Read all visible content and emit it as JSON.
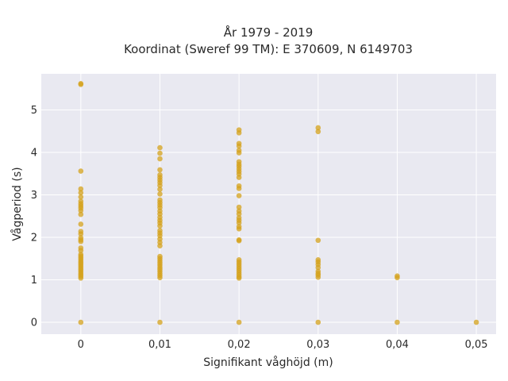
{
  "chart_data": {
    "type": "scatter",
    "title": [
      "År 1979 - 2019",
      "Koordinat (Sweref 99 TM): E 370609, N 6149703"
    ],
    "xlabel": "Signifikant våghöjd (m)",
    "ylabel": "Vågperiod (s)",
    "xlim": [
      -0.005,
      0.0525
    ],
    "ylim": [
      -0.28,
      5.85
    ],
    "xticks": [
      0,
      0.01,
      0.02,
      0.03,
      0.04,
      0.05
    ],
    "xtick_labels": [
      "0",
      "0,01",
      "0,02",
      "0,03",
      "0,04",
      "0,05"
    ],
    "yticks": [
      0,
      1,
      2,
      3,
      4,
      5
    ],
    "ytick_labels": [
      "0",
      "1",
      "2",
      "3",
      "4",
      "5"
    ],
    "grid": true,
    "background": "#e9e9f1",
    "marker_color": "#d4a21b",
    "series": [
      {
        "points": [
          [
            0,
            5.62
          ],
          [
            0,
            5.6
          ],
          [
            0,
            3.56
          ],
          [
            0,
            3.14
          ],
          [
            0,
            3.05
          ],
          [
            0,
            2.95
          ],
          [
            0,
            2.85
          ],
          [
            0,
            2.79
          ],
          [
            0,
            2.74
          ],
          [
            0,
            2.69
          ],
          [
            0,
            2.63
          ],
          [
            0,
            2.54
          ],
          [
            0,
            2.31
          ],
          [
            0,
            2.14
          ],
          [
            0,
            2.08
          ],
          [
            0,
            1.99
          ],
          [
            0,
            1.94
          ],
          [
            0,
            1.9
          ],
          [
            0,
            1.75
          ],
          [
            0,
            1.69
          ],
          [
            0,
            1.6
          ],
          [
            0,
            1.56
          ],
          [
            0,
            1.52
          ],
          [
            0,
            1.48
          ],
          [
            0,
            1.44
          ],
          [
            0,
            1.4
          ],
          [
            0,
            1.36
          ],
          [
            0,
            1.32
          ],
          [
            0,
            1.28
          ],
          [
            0,
            1.24
          ],
          [
            0,
            1.2
          ],
          [
            0,
            1.16
          ],
          [
            0,
            1.12
          ],
          [
            0,
            1.08
          ],
          [
            0,
            1.04
          ],
          [
            0,
            0.0
          ],
          [
            0.01,
            4.11
          ],
          [
            0.01,
            3.98
          ],
          [
            0.01,
            3.85
          ],
          [
            0.01,
            3.59
          ],
          [
            0.01,
            3.47
          ],
          [
            0.01,
            3.41
          ],
          [
            0.01,
            3.35
          ],
          [
            0.01,
            3.29
          ],
          [
            0.01,
            3.22
          ],
          [
            0.01,
            3.13
          ],
          [
            0.01,
            3.02
          ],
          [
            0.01,
            2.88
          ],
          [
            0.01,
            2.82
          ],
          [
            0.01,
            2.76
          ],
          [
            0.01,
            2.7
          ],
          [
            0.01,
            2.62
          ],
          [
            0.01,
            2.55
          ],
          [
            0.01,
            2.47
          ],
          [
            0.01,
            2.4
          ],
          [
            0.01,
            2.34
          ],
          [
            0.01,
            2.27
          ],
          [
            0.01,
            2.16
          ],
          [
            0.01,
            2.1
          ],
          [
            0.01,
            2.04
          ],
          [
            0.01,
            1.96
          ],
          [
            0.01,
            1.88
          ],
          [
            0.01,
            1.8
          ],
          [
            0.01,
            1.55
          ],
          [
            0.01,
            1.5
          ],
          [
            0.01,
            1.45
          ],
          [
            0.01,
            1.4
          ],
          [
            0.01,
            1.35
          ],
          [
            0.01,
            1.3
          ],
          [
            0.01,
            1.25
          ],
          [
            0.01,
            1.2
          ],
          [
            0.01,
            1.15
          ],
          [
            0.01,
            1.1
          ],
          [
            0.01,
            1.05
          ],
          [
            0.01,
            0.0
          ],
          [
            0.02,
            4.53
          ],
          [
            0.02,
            4.46
          ],
          [
            0.02,
            4.21
          ],
          [
            0.02,
            4.15
          ],
          [
            0.02,
            4.05
          ],
          [
            0.02,
            3.99
          ],
          [
            0.02,
            3.78
          ],
          [
            0.02,
            3.72
          ],
          [
            0.02,
            3.67
          ],
          [
            0.02,
            3.61
          ],
          [
            0.02,
            3.55
          ],
          [
            0.02,
            3.49
          ],
          [
            0.02,
            3.41
          ],
          [
            0.02,
            3.21
          ],
          [
            0.02,
            3.15
          ],
          [
            0.02,
            2.98
          ],
          [
            0.02,
            2.71
          ],
          [
            0.02,
            2.62
          ],
          [
            0.02,
            2.55
          ],
          [
            0.02,
            2.46
          ],
          [
            0.02,
            2.4
          ],
          [
            0.02,
            2.34
          ],
          [
            0.02,
            2.25
          ],
          [
            0.02,
            2.2
          ],
          [
            0.02,
            1.94
          ],
          [
            0.02,
            1.92
          ],
          [
            0.02,
            1.47
          ],
          [
            0.02,
            1.42
          ],
          [
            0.02,
            1.37
          ],
          [
            0.02,
            1.32
          ],
          [
            0.02,
            1.27
          ],
          [
            0.02,
            1.22
          ],
          [
            0.02,
            1.17
          ],
          [
            0.02,
            1.12
          ],
          [
            0.02,
            1.07
          ],
          [
            0.02,
            1.04
          ],
          [
            0.02,
            0.0
          ],
          [
            0.03,
            4.58
          ],
          [
            0.03,
            4.49
          ],
          [
            0.03,
            1.93
          ],
          [
            0.03,
            1.47
          ],
          [
            0.03,
            1.42
          ],
          [
            0.03,
            1.36
          ],
          [
            0.03,
            1.29
          ],
          [
            0.03,
            1.2
          ],
          [
            0.03,
            1.15
          ],
          [
            0.03,
            1.11
          ],
          [
            0.03,
            1.06
          ],
          [
            0.03,
            0.0
          ],
          [
            0.04,
            1.09
          ],
          [
            0.04,
            1.05
          ],
          [
            0.04,
            0.0
          ],
          [
            0.05,
            0.0
          ]
        ]
      }
    ]
  }
}
